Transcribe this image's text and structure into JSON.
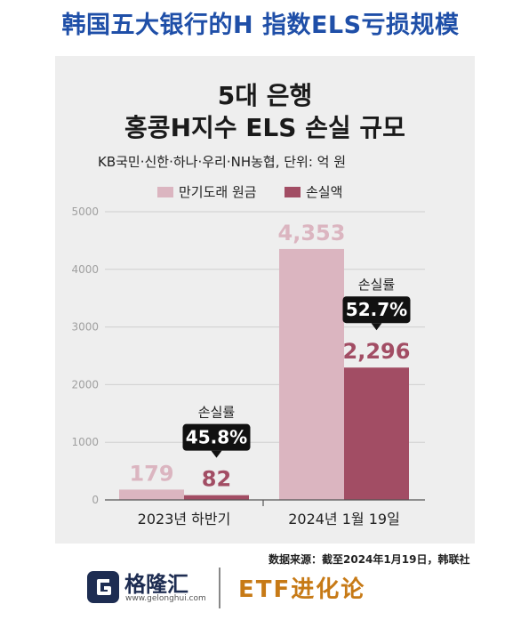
{
  "page": {
    "header_title": "韩国五大银行的H 指数ELS亏损规模",
    "source_note": "数据来源：截至2024年1月19日，韩联社",
    "brand_name": "格隆汇",
    "brand_url": "www.gelonghui.com",
    "column_name": "ETF进化论"
  },
  "chart_data": {
    "type": "bar",
    "title": "5대 은행",
    "subtitle": "홍콩H지수 ELS 손실 규모",
    "note": "KB국민·신한·하나·우리·NH농협, 단위: 억 원",
    "categories": [
      "2023년 하반기",
      "2024년 1월 19일"
    ],
    "series": [
      {
        "name": "만기도래 원금",
        "values": [
          179,
          4353
        ],
        "color": "#dbb5c0",
        "labels": [
          "179",
          "4,353"
        ]
      },
      {
        "name": "손실액",
        "values": [
          82,
          2296
        ],
        "color": "#a24d64",
        "labels": [
          "82",
          "2,296"
        ]
      }
    ],
    "loss_rate_label": "손실률",
    "loss_rates": [
      "45.8%",
      "52.7%"
    ],
    "ylim": [
      0,
      5000
    ],
    "yticks": [
      0,
      1000,
      2000,
      3000,
      4000,
      5000
    ],
    "grid": true,
    "legend_position": "top"
  }
}
